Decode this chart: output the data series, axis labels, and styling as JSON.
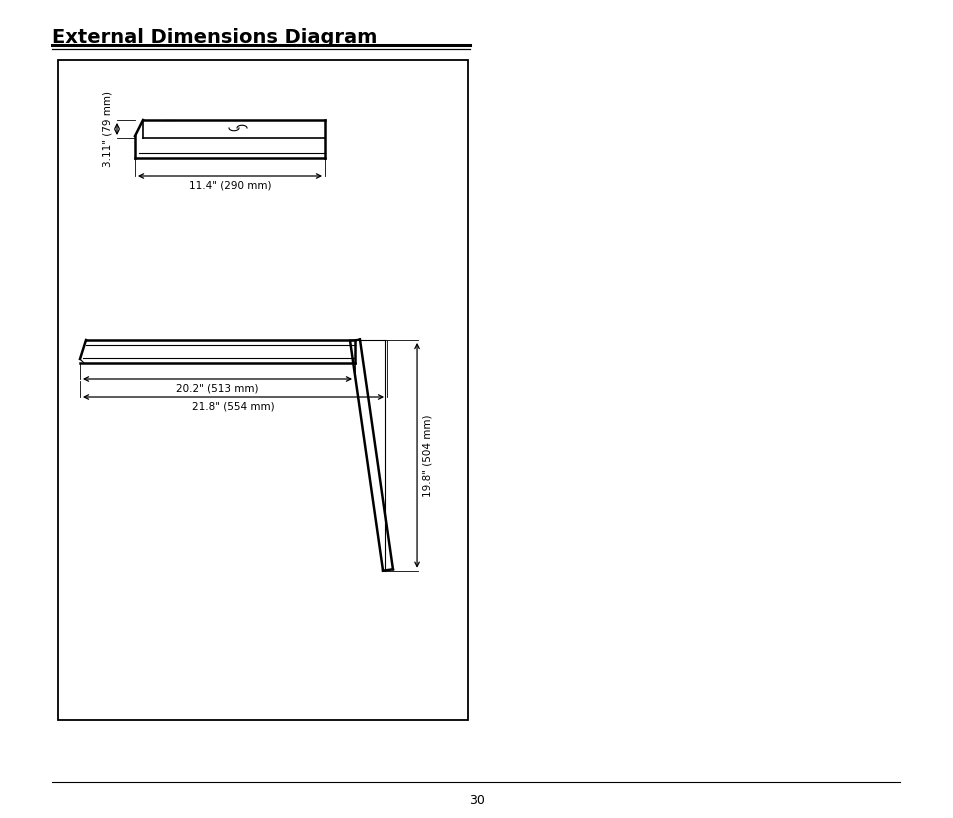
{
  "title": "External Dimensions Diagram",
  "page_number": "30",
  "bg_color": "#ffffff",
  "line_color": "#000000",
  "title_fontsize": 14,
  "top_view": {
    "label_width": "11.4\" (290 mm)",
    "label_height": "3.11\" (79 mm)"
  },
  "side_view": {
    "label_width1": "20.2\" (513 mm)",
    "label_width2": "21.8\" (554 mm)",
    "label_height": "19.8\" (504 mm)"
  }
}
